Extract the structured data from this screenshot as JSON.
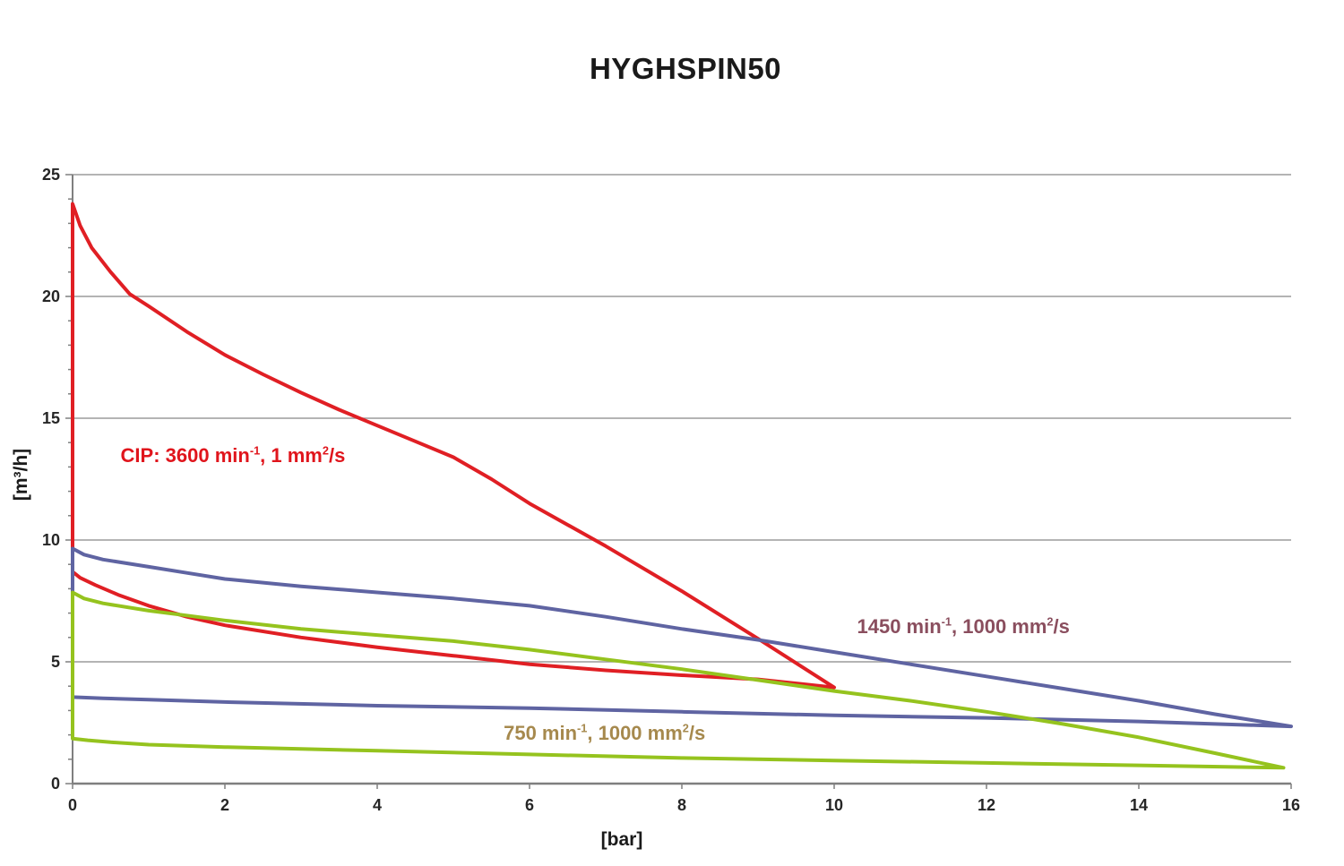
{
  "title": "HYGHSPIN50",
  "axes": {
    "xlabel": "[bar]",
    "ylabel": "[m³/h]"
  },
  "chart_data": {
    "type": "line",
    "title": "HYGHSPIN50",
    "xlabel": "[bar]",
    "ylabel": "[m³/h]",
    "xlim": [
      0,
      16
    ],
    "ylim": [
      0,
      25
    ],
    "x_ticks": [
      0,
      2,
      4,
      6,
      8,
      10,
      12,
      14,
      16
    ],
    "y_ticks": [
      0,
      5,
      10,
      15,
      20,
      25
    ],
    "y_minor_tick_step": 1,
    "grid": "horizontal",
    "gridline_color": "#9b9b9b",
    "axis_color": "#7f7f7f",
    "legend_position": "none",
    "series": [
      {
        "id": "cip-3600",
        "name": "CIP: 3600 min-1, 1 mm2/s",
        "color": "#e01f24",
        "closed_loop": true,
        "points": [
          [
            0,
            23.8
          ],
          [
            0.1,
            22.9
          ],
          [
            0.25,
            22.0
          ],
          [
            0.5,
            21.0
          ],
          [
            0.75,
            20.1
          ],
          [
            1,
            19.6
          ],
          [
            1.5,
            18.55
          ],
          [
            2,
            17.6
          ],
          [
            2.5,
            16.8
          ],
          [
            3,
            16.05
          ],
          [
            3.5,
            15.35
          ],
          [
            4,
            14.7
          ],
          [
            4.5,
            14.05
          ],
          [
            5,
            13.4
          ],
          [
            5.5,
            12.5
          ],
          [
            6,
            11.5
          ],
          [
            7,
            9.75
          ],
          [
            8,
            7.9
          ],
          [
            9,
            5.95
          ],
          [
            10,
            3.95
          ],
          [
            9,
            4.28
          ],
          [
            8,
            4.45
          ],
          [
            7,
            4.65
          ],
          [
            6,
            4.9
          ],
          [
            5,
            5.25
          ],
          [
            4,
            5.6
          ],
          [
            3,
            6.0
          ],
          [
            2,
            6.5
          ],
          [
            1.5,
            6.85
          ],
          [
            1,
            7.3
          ],
          [
            0.6,
            7.75
          ],
          [
            0.3,
            8.15
          ],
          [
            0.1,
            8.45
          ],
          [
            0,
            8.7
          ]
        ]
      },
      {
        "id": "1450",
        "name": "1450 min-1, 1000 mm2/s",
        "color": "#5f64a2",
        "closed_loop": true,
        "points": [
          [
            0,
            9.65
          ],
          [
            0.15,
            9.4
          ],
          [
            0.4,
            9.2
          ],
          [
            1,
            8.9
          ],
          [
            1.5,
            8.65
          ],
          [
            2,
            8.4
          ],
          [
            3,
            8.1
          ],
          [
            4,
            7.85
          ],
          [
            5,
            7.6
          ],
          [
            6,
            7.3
          ],
          [
            7,
            6.85
          ],
          [
            8,
            6.35
          ],
          [
            9,
            5.9
          ],
          [
            10,
            5.4
          ],
          [
            11,
            4.9
          ],
          [
            12,
            4.4
          ],
          [
            13,
            3.9
          ],
          [
            14,
            3.4
          ],
          [
            15,
            2.85
          ],
          [
            15.6,
            2.55
          ],
          [
            16,
            2.35
          ],
          [
            14,
            2.55
          ],
          [
            12,
            2.7
          ],
          [
            10,
            2.8
          ],
          [
            8,
            2.95
          ],
          [
            6,
            3.1
          ],
          [
            4,
            3.2
          ],
          [
            2,
            3.35
          ],
          [
            1,
            3.45
          ],
          [
            0.4,
            3.5
          ],
          [
            0,
            3.55
          ]
        ]
      },
      {
        "id": "750",
        "name": "750 min-1, 1000 mm2/s",
        "color": "#95c31e",
        "closed_loop": true,
        "points": [
          [
            0,
            7.85
          ],
          [
            0.15,
            7.6
          ],
          [
            0.4,
            7.4
          ],
          [
            1,
            7.1
          ],
          [
            1.5,
            6.9
          ],
          [
            2,
            6.7
          ],
          [
            3,
            6.35
          ],
          [
            4,
            6.1
          ],
          [
            5,
            5.85
          ],
          [
            6,
            5.5
          ],
          [
            7,
            5.1
          ],
          [
            8,
            4.7
          ],
          [
            9,
            4.25
          ],
          [
            10,
            3.8
          ],
          [
            11,
            3.4
          ],
          [
            12,
            2.95
          ],
          [
            13,
            2.45
          ],
          [
            14,
            1.9
          ],
          [
            15,
            1.25
          ],
          [
            15.9,
            0.65
          ],
          [
            14,
            0.75
          ],
          [
            12,
            0.85
          ],
          [
            10,
            0.95
          ],
          [
            8,
            1.05
          ],
          [
            6,
            1.2
          ],
          [
            4,
            1.35
          ],
          [
            2,
            1.5
          ],
          [
            1,
            1.6
          ],
          [
            0.5,
            1.7
          ],
          [
            0.2,
            1.78
          ],
          [
            0,
            1.85
          ]
        ]
      }
    ],
    "annotations": [
      {
        "id": "cip-3600",
        "pre": "CIP: 3600 min",
        "sup1": "-1",
        "mid": ", 1 mm",
        "sup2": "2",
        "post": "/s",
        "color": "#e0151c",
        "x": 0.63,
        "y": 13.45
      },
      {
        "id": "1450",
        "pre": "1450 min",
        "sup1": "-1",
        "mid": ", 1000 mm",
        "sup2": "2",
        "post": "/s",
        "color": "#8a4e5e",
        "x": 10.3,
        "y": 6.45
      },
      {
        "id": "750",
        "pre": "750 min",
        "sup1": "-1",
        "mid": ", 1000 mm",
        "sup2": "2",
        "post": "/s",
        "color": "#a6894d",
        "x": 5.66,
        "y": 2.05
      }
    ]
  }
}
